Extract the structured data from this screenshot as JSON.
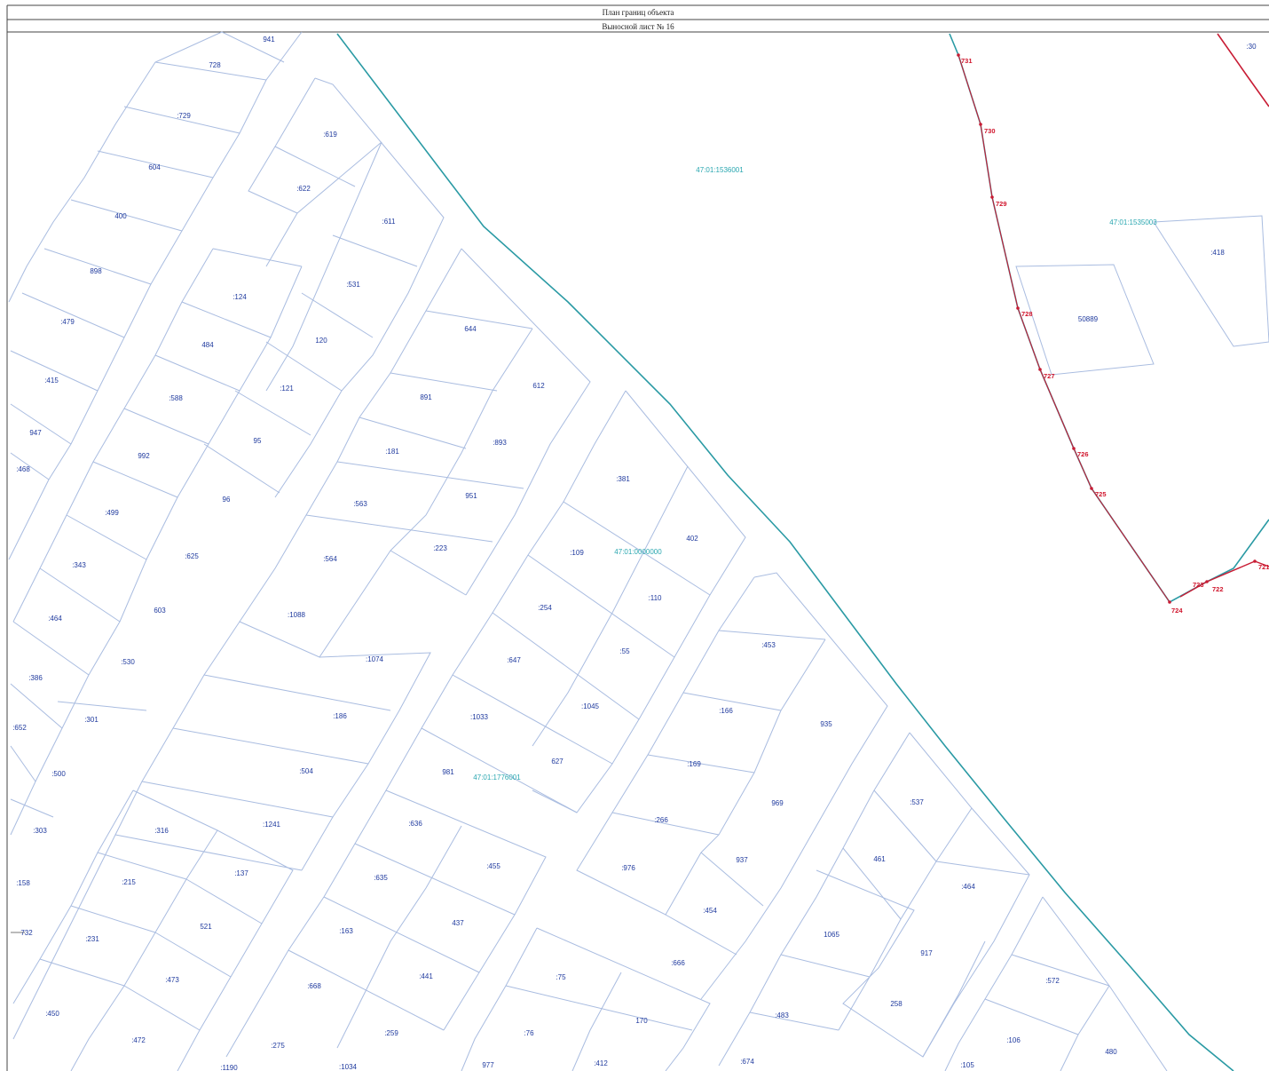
{
  "header": {
    "title": "План границ объекта",
    "sheet": "Выносной лист № 16"
  },
  "colors": {
    "plot_line": "#a9bce0",
    "boundary": "#2a9aa4",
    "object_line": "#c81c34",
    "label": "#1f3a9e",
    "cadastral": "#2aa7b0"
  },
  "cadastral_numbers": [
    {
      "id": "c1",
      "text": "47:01:1536001"
    },
    {
      "id": "c2",
      "text": "47:01:1535003"
    },
    {
      "id": "c3",
      "text": "47:01:0000000"
    },
    {
      "id": "c4",
      "text": "47:01:1776001"
    }
  ],
  "boundary_points": [
    {
      "id": "p731",
      "text": "731"
    },
    {
      "id": "p730",
      "text": "730"
    },
    {
      "id": "p729",
      "text": "729"
    },
    {
      "id": "p728",
      "text": "728"
    },
    {
      "id": "p727",
      "text": "727"
    },
    {
      "id": "p726",
      "text": "726"
    },
    {
      "id": "p725",
      "text": "725"
    },
    {
      "id": "p724",
      "text": "724"
    },
    {
      "id": "p723",
      "text": "723"
    },
    {
      "id": "p722",
      "text": "722"
    },
    {
      "id": "p721",
      "text": "721"
    },
    {
      "id": "p732",
      "text": "732"
    }
  ],
  "parcels": [
    {
      "id": "a1",
      "text": "941"
    },
    {
      "id": "a2",
      "text": "728"
    },
    {
      "id": "a3",
      "text": ":729"
    },
    {
      "id": "a4",
      "text": "604"
    },
    {
      "id": "a5",
      "text": "400"
    },
    {
      "id": "a6",
      "text": "898"
    },
    {
      "id": "a7",
      "text": ":479"
    },
    {
      "id": "a8",
      "text": ":415"
    },
    {
      "id": "a9",
      "text": "947"
    },
    {
      "id": "a10",
      "text": ":468"
    },
    {
      "id": "a11",
      "text": ":619"
    },
    {
      "id": "a12",
      "text": ":622"
    },
    {
      "id": "a13",
      "text": ":611"
    },
    {
      "id": "a14",
      "text": ":531"
    },
    {
      "id": "a15",
      "text": ":124"
    },
    {
      "id": "a16",
      "text": "484"
    },
    {
      "id": "a17",
      "text": "120"
    },
    {
      "id": "a18",
      "text": ":121"
    },
    {
      "id": "a19",
      "text": ":588"
    },
    {
      "id": "a20",
      "text": "95"
    },
    {
      "id": "a21",
      "text": "992"
    },
    {
      "id": "a22",
      "text": "96"
    },
    {
      "id": "a23",
      "text": ":499"
    },
    {
      "id": "a24",
      "text": ":625"
    },
    {
      "id": "a25",
      "text": ":343"
    },
    {
      "id": "a26",
      "text": "603"
    },
    {
      "id": "a27",
      "text": ":464"
    },
    {
      "id": "a28",
      "text": ":530"
    },
    {
      "id": "a29",
      "text": ":386"
    },
    {
      "id": "a30",
      "text": ":301"
    },
    {
      "id": "a31",
      "text": ":652"
    },
    {
      "id": "a32",
      "text": ":500"
    },
    {
      "id": "a33",
      "text": ":303"
    },
    {
      "id": "a34",
      "text": ":316"
    },
    {
      "id": "a35",
      "text": ":158"
    },
    {
      "id": "a36",
      "text": ":215"
    },
    {
      "id": "a37",
      "text": ":231"
    },
    {
      "id": "a38",
      "text": "521"
    },
    {
      "id": "a39",
      "text": ":137"
    },
    {
      "id": "a40",
      "text": ":473"
    },
    {
      "id": "a41",
      "text": ":450"
    },
    {
      "id": "a42",
      "text": ":472"
    },
    {
      "id": "a43",
      "text": "644"
    },
    {
      "id": "a44",
      "text": "612"
    },
    {
      "id": "a45",
      "text": "891"
    },
    {
      "id": "a46",
      "text": ":893"
    },
    {
      "id": "a47",
      "text": ":181"
    },
    {
      "id": "a48",
      "text": "951"
    },
    {
      "id": "a49",
      "text": ":563"
    },
    {
      "id": "a50",
      "text": ":223"
    },
    {
      "id": "a51",
      "text": ":564"
    },
    {
      "id": "a52",
      "text": ":1088"
    },
    {
      "id": "a53",
      "text": ":1074"
    },
    {
      "id": "a54",
      "text": ":186"
    },
    {
      "id": "a55",
      "text": ":504"
    },
    {
      "id": "a56",
      "text": ":1241"
    },
    {
      "id": "a57",
      "text": ":381"
    },
    {
      "id": "a58",
      "text": "402"
    },
    {
      "id": "a59",
      "text": ":109"
    },
    {
      "id": "a60",
      "text": ":110"
    },
    {
      "id": "a61",
      "text": ":254"
    },
    {
      "id": "a62",
      "text": ":55"
    },
    {
      "id": "a63",
      "text": ":647"
    },
    {
      "id": "a64",
      "text": ":1045"
    },
    {
      "id": "a65",
      "text": ":1033"
    },
    {
      "id": "a66",
      "text": "627"
    },
    {
      "id": "a67",
      "text": "981"
    },
    {
      "id": "a68",
      "text": ":636"
    },
    {
      "id": "a69",
      "text": ":455"
    },
    {
      "id": "a70",
      "text": ":635"
    },
    {
      "id": "a71",
      "text": "437"
    },
    {
      "id": "a72",
      "text": ":163"
    },
    {
      "id": "a73",
      "text": ":441"
    },
    {
      "id": "a74",
      "text": ":668"
    },
    {
      "id": "a75",
      "text": ":259"
    },
    {
      "id": "a76",
      "text": ":275"
    },
    {
      "id": "a77",
      "text": ":1034"
    },
    {
      "id": "a78",
      "text": ":1190"
    },
    {
      "id": "a79",
      "text": ":453"
    },
    {
      "id": "a80",
      "text": ":166"
    },
    {
      "id": "a81",
      "text": "935"
    },
    {
      "id": "a82",
      "text": ":169"
    },
    {
      "id": "a83",
      "text": "969"
    },
    {
      "id": "a84",
      "text": ":266"
    },
    {
      "id": "a85",
      "text": "937"
    },
    {
      "id": "a86",
      "text": ":976"
    },
    {
      "id": "a87",
      "text": ":454"
    },
    {
      "id": "a88",
      "text": ":666"
    },
    {
      "id": "a89",
      "text": ":75"
    },
    {
      "id": "a90",
      "text": "170"
    },
    {
      "id": "a91",
      "text": ":76"
    },
    {
      "id": "a92",
      "text": "977"
    },
    {
      "id": "a93",
      "text": ":412"
    },
    {
      "id": "a94",
      "text": ":537"
    },
    {
      "id": "a95",
      "text": "461"
    },
    {
      "id": "a96",
      "text": ":464"
    },
    {
      "id": "a97",
      "text": "1065"
    },
    {
      "id": "a98",
      "text": "917"
    },
    {
      "id": "a99",
      "text": "258"
    },
    {
      "id": "a100",
      "text": ":483"
    },
    {
      "id": "a101",
      "text": ":674"
    },
    {
      "id": "a102",
      "text": ":572"
    },
    {
      "id": "a103",
      "text": ":106"
    },
    {
      "id": "a104",
      "text": ":105"
    },
    {
      "id": "a105",
      "text": "480"
    },
    {
      "id": "a106",
      "text": ":30"
    },
    {
      "id": "a107",
      "text": ":418"
    },
    {
      "id": "a108",
      "text": "50889"
    }
  ]
}
